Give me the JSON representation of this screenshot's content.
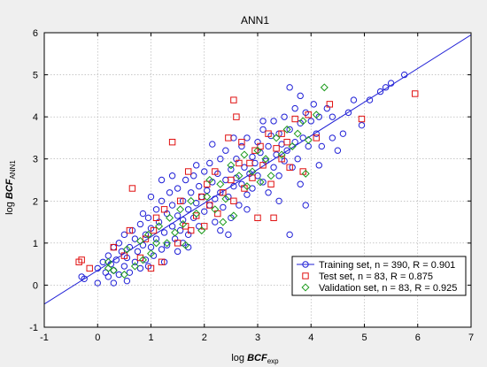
{
  "chart_data": {
    "type": "scatter",
    "title": "ANN1",
    "xlabel": {
      "prefix": "log ",
      "main": "BCF",
      "sub": "exp"
    },
    "ylabel": {
      "prefix": "log ",
      "main": "BCF",
      "sub": "ANN1"
    },
    "xlim": [
      -1,
      7
    ],
    "ylim": [
      -1,
      6
    ],
    "xticks": [
      -1,
      0,
      1,
      2,
      3,
      4,
      5,
      6,
      7
    ],
    "yticks": [
      -1,
      0,
      1,
      2,
      3,
      4,
      5,
      6
    ],
    "grid": true,
    "legend_position": "bottom-right",
    "fit_line": {
      "x1": -1,
      "y1": -0.45,
      "x2": 7,
      "y2": 5.95,
      "color": "#1f1fd6"
    },
    "series": [
      {
        "name": "Training set, n = 390, R = 0.901",
        "marker": "circle",
        "color": "#1f1fd6",
        "points": [
          [
            -0.3,
            0.2
          ],
          [
            -0.25,
            0.15
          ],
          [
            0.0,
            0.4
          ],
          [
            0.1,
            0.55
          ],
          [
            0.15,
            0.3
          ],
          [
            0.2,
            0.2
          ],
          [
            0.2,
            0.7
          ],
          [
            0.25,
            0.5
          ],
          [
            0.3,
            0.9
          ],
          [
            0.3,
            0.35
          ],
          [
            0.35,
            0.6
          ],
          [
            0.4,
            1.0
          ],
          [
            0.4,
            0.25
          ],
          [
            0.45,
            0.8
          ],
          [
            0.5,
            0.45
          ],
          [
            0.5,
            1.2
          ],
          [
            0.55,
            0.65
          ],
          [
            0.6,
            0.9
          ],
          [
            0.6,
            0.3
          ],
          [
            0.65,
            1.3
          ],
          [
            0.7,
            0.55
          ],
          [
            0.7,
            1.1
          ],
          [
            0.75,
            0.8
          ],
          [
            0.8,
            0.4
          ],
          [
            0.8,
            1.45
          ],
          [
            0.85,
            0.95
          ],
          [
            0.9,
            1.2
          ],
          [
            0.9,
            0.6
          ],
          [
            0.95,
            1.6
          ],
          [
            1.0,
            0.9
          ],
          [
            1.0,
            1.35
          ],
          [
            1.05,
            0.7
          ],
          [
            1.1,
            1.8
          ],
          [
            1.1,
            1.1
          ],
          [
            1.15,
            1.5
          ],
          [
            1.2,
            0.85
          ],
          [
            1.2,
            2.0
          ],
          [
            1.25,
            1.25
          ],
          [
            1.3,
            1.7
          ],
          [
            1.3,
            0.95
          ],
          [
            1.35,
            2.2
          ],
          [
            1.4,
            1.4
          ],
          [
            1.4,
            1.9
          ],
          [
            1.45,
            1.1
          ],
          [
            1.5,
            1.65
          ],
          [
            1.5,
            2.3
          ],
          [
            1.55,
            1.3
          ],
          [
            1.6,
            2.0
          ],
          [
            1.6,
            1.55
          ],
          [
            1.65,
            2.5
          ],
          [
            1.7,
            1.8
          ],
          [
            1.7,
            1.2
          ],
          [
            1.75,
            2.2
          ],
          [
            1.8,
            1.6
          ],
          [
            1.8,
            2.6
          ],
          [
            1.85,
            1.95
          ],
          [
            1.9,
            2.35
          ],
          [
            1.9,
            1.4
          ],
          [
            1.95,
            2.1
          ],
          [
            2.0,
            1.75
          ],
          [
            2.0,
            2.7
          ],
          [
            2.05,
            2.25
          ],
          [
            2.1,
            1.9
          ],
          [
            2.1,
            2.9
          ],
          [
            2.15,
            2.45
          ],
          [
            2.2,
            2.05
          ],
          [
            2.2,
            1.5
          ],
          [
            2.25,
            2.65
          ],
          [
            2.3,
            2.2
          ],
          [
            2.3,
            3.0
          ],
          [
            2.35,
            1.85
          ],
          [
            2.4,
            2.5
          ],
          [
            2.4,
            3.2
          ],
          [
            2.45,
            2.1
          ],
          [
            2.5,
            2.75
          ],
          [
            2.5,
            1.6
          ],
          [
            2.55,
            2.35
          ],
          [
            2.6,
            3.0
          ],
          [
            2.6,
            2.55
          ],
          [
            2.65,
            1.9
          ],
          [
            2.7,
            3.3
          ],
          [
            2.7,
            2.4
          ],
          [
            2.75,
            2.8
          ],
          [
            2.8,
            2.15
          ],
          [
            2.8,
            3.5
          ],
          [
            2.85,
            2.65
          ],
          [
            2.9,
            3.05
          ],
          [
            2.9,
            2.3
          ],
          [
            2.95,
            2.9
          ],
          [
            3.0,
            3.4
          ],
          [
            3.0,
            2.6
          ],
          [
            3.05,
            3.15
          ],
          [
            3.1,
            2.45
          ],
          [
            3.1,
            3.7
          ],
          [
            3.15,
            2.95
          ],
          [
            3.2,
            3.3
          ],
          [
            3.2,
            2.2
          ],
          [
            3.25,
            3.55
          ],
          [
            3.3,
            2.8
          ],
          [
            3.3,
            3.9
          ],
          [
            3.35,
            3.1
          ],
          [
            3.4,
            2.6
          ],
          [
            3.4,
            3.6
          ],
          [
            3.45,
            3.35
          ],
          [
            3.5,
            2.95
          ],
          [
            3.5,
            4.0
          ],
          [
            3.55,
            3.2
          ],
          [
            3.6,
            1.2
          ],
          [
            3.6,
            3.7
          ],
          [
            3.65,
            2.8
          ],
          [
            3.7,
            4.2
          ],
          [
            3.7,
            3.4
          ],
          [
            3.75,
            3.0
          ],
          [
            3.8,
            3.85
          ],
          [
            3.8,
            4.5
          ],
          [
            3.85,
            3.5
          ],
          [
            3.9,
            1.9
          ],
          [
            3.9,
            4.1
          ],
          [
            3.95,
            3.3
          ],
          [
            4.0,
            3.9
          ],
          [
            4.05,
            4.3
          ],
          [
            4.1,
            3.6
          ],
          [
            4.15,
            4.0
          ],
          [
            4.2,
            3.3
          ],
          [
            4.3,
            4.2
          ],
          [
            4.4,
            4.0
          ],
          [
            4.5,
            3.2
          ],
          [
            4.6,
            3.6
          ],
          [
            4.7,
            4.1
          ],
          [
            4.8,
            4.4
          ],
          [
            4.95,
            3.8
          ],
          [
            5.1,
            4.4
          ],
          [
            5.3,
            4.6
          ],
          [
            5.4,
            4.7
          ],
          [
            5.5,
            4.8
          ],
          [
            5.75,
            5.0
          ],
          [
            0.55,
            0.1
          ],
          [
            0.95,
            0.45
          ],
          [
            1.25,
            0.55
          ],
          [
            1.5,
            0.8
          ],
          [
            1.7,
            0.9
          ],
          [
            1.2,
            2.5
          ],
          [
            1.4,
            2.6
          ],
          [
            1.0,
            2.1
          ],
          [
            0.85,
            1.7
          ],
          [
            2.3,
            1.3
          ],
          [
            2.45,
            1.2
          ],
          [
            2.8,
            1.8
          ],
          [
            3.4,
            2.0
          ],
          [
            3.1,
            3.9
          ],
          [
            3.8,
            2.4
          ],
          [
            3.6,
            4.7
          ],
          [
            2.55,
            3.5
          ],
          [
            2.15,
            3.35
          ],
          [
            1.85,
            2.85
          ],
          [
            4.15,
            2.85
          ],
          [
            4.4,
            3.5
          ],
          [
            0.0,
            0.05
          ],
          [
            0.3,
            0.05
          ],
          [
            1.6,
            1.0
          ]
        ]
      },
      {
        "name": "Test set, n = 83, R = 0.875",
        "marker": "square",
        "color": "#e01010",
        "points": [
          [
            -0.35,
            0.55
          ],
          [
            -0.3,
            0.6
          ],
          [
            -0.15,
            0.4
          ],
          [
            0.3,
            0.9
          ],
          [
            0.5,
            0.7
          ],
          [
            0.6,
            1.3
          ],
          [
            0.65,
            2.3
          ],
          [
            0.8,
            0.65
          ],
          [
            0.9,
            1.1
          ],
          [
            1.0,
            0.4
          ],
          [
            1.05,
            1.3
          ],
          [
            1.1,
            1.6
          ],
          [
            1.2,
            0.55
          ],
          [
            1.25,
            1.8
          ],
          [
            1.4,
            3.4
          ],
          [
            1.5,
            1.0
          ],
          [
            1.55,
            2.0
          ],
          [
            1.65,
            1.4
          ],
          [
            1.7,
            2.7
          ],
          [
            1.75,
            1.3
          ],
          [
            1.85,
            1.65
          ],
          [
            1.95,
            2.1
          ],
          [
            2.0,
            1.4
          ],
          [
            2.05,
            2.4
          ],
          [
            2.1,
            1.9
          ],
          [
            2.2,
            2.7
          ],
          [
            2.25,
            1.7
          ],
          [
            2.35,
            2.2
          ],
          [
            2.45,
            3.5
          ],
          [
            2.5,
            2.5
          ],
          [
            2.55,
            2.0
          ],
          [
            2.6,
            4.0
          ],
          [
            2.65,
            2.9
          ],
          [
            2.7,
            3.4
          ],
          [
            2.75,
            2.3
          ],
          [
            2.85,
            2.9
          ],
          [
            2.9,
            2.55
          ],
          [
            2.95,
            3.2
          ],
          [
            3.0,
            1.6
          ],
          [
            3.05,
            3.3
          ],
          [
            3.1,
            2.85
          ],
          [
            3.2,
            3.6
          ],
          [
            3.25,
            2.4
          ],
          [
            3.35,
            3.25
          ],
          [
            3.45,
            3.0
          ],
          [
            3.55,
            3.4
          ],
          [
            3.6,
            2.8
          ],
          [
            3.7,
            3.95
          ],
          [
            3.85,
            2.7
          ],
          [
            3.95,
            4.05
          ],
          [
            4.1,
            3.5
          ],
          [
            4.35,
            4.3
          ],
          [
            4.95,
            3.95
          ],
          [
            5.95,
            4.55
          ],
          [
            2.55,
            4.4
          ],
          [
            3.3,
            1.6
          ],
          [
            3.45,
            3.6
          ]
        ]
      },
      {
        "name": "Validation set, n = 83, R = 0.925",
        "marker": "diamond",
        "color": "#1a9a1a",
        "points": [
          [
            0.2,
            0.55
          ],
          [
            0.3,
            0.35
          ],
          [
            0.5,
            0.25
          ],
          [
            0.55,
            0.85
          ],
          [
            0.7,
            0.45
          ],
          [
            0.8,
            1.05
          ],
          [
            0.85,
            0.6
          ],
          [
            0.95,
            1.2
          ],
          [
            1.0,
            0.75
          ],
          [
            1.1,
            1.0
          ],
          [
            1.15,
            1.4
          ],
          [
            1.3,
            1.0
          ],
          [
            1.35,
            1.6
          ],
          [
            1.45,
            1.25
          ],
          [
            1.55,
            1.8
          ],
          [
            1.65,
            0.95
          ],
          [
            1.75,
            2.0
          ],
          [
            1.85,
            1.7
          ],
          [
            1.95,
            1.3
          ],
          [
            2.05,
            2.1
          ],
          [
            2.1,
            2.5
          ],
          [
            2.2,
            1.8
          ],
          [
            2.3,
            2.4
          ],
          [
            2.4,
            2.05
          ],
          [
            2.5,
            2.85
          ],
          [
            2.55,
            1.65
          ],
          [
            2.65,
            2.6
          ],
          [
            2.75,
            3.1
          ],
          [
            2.8,
            2.35
          ],
          [
            2.9,
            2.7
          ],
          [
            3.0,
            3.2
          ],
          [
            3.05,
            2.45
          ],
          [
            3.15,
            3.0
          ],
          [
            3.25,
            2.6
          ],
          [
            3.35,
            3.5
          ],
          [
            3.45,
            3.1
          ],
          [
            3.55,
            3.7
          ],
          [
            3.65,
            3.3
          ],
          [
            3.75,
            3.6
          ],
          [
            3.85,
            3.9
          ],
          [
            3.95,
            3.45
          ],
          [
            4.1,
            4.05
          ],
          [
            4.25,
            4.7
          ],
          [
            1.6,
            1.45
          ],
          [
            2.35,
            1.5
          ],
          [
            0.2,
            0.4
          ],
          [
            3.9,
            2.65
          ]
        ]
      }
    ]
  }
}
